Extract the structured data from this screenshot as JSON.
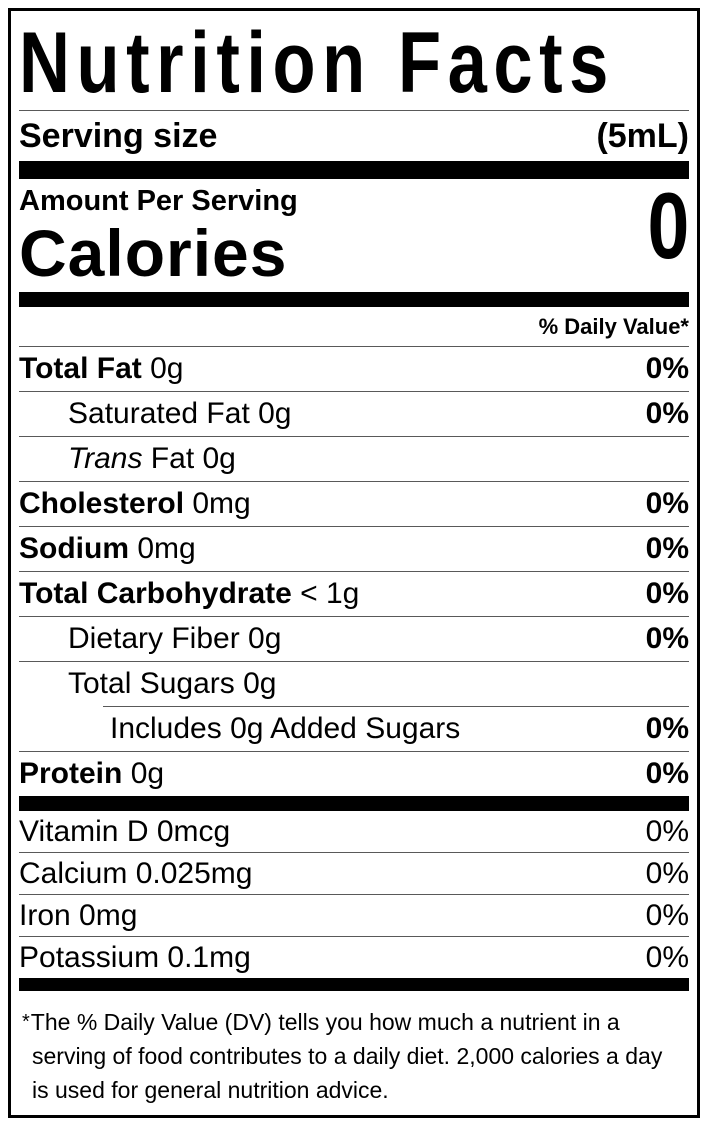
{
  "colors": {
    "text": "#000000",
    "background": "#ffffff",
    "bar": "#000000"
  },
  "title": "Nutrition Facts",
  "serving": {
    "label": "Serving size",
    "value": "(5mL)"
  },
  "amount_per_serving": "Amount Per Serving",
  "calories": {
    "label": "Calories",
    "value": "0"
  },
  "daily_value_header": "% Daily Value*",
  "nutrients": [
    {
      "name": "Total Fat",
      "amount": "0g",
      "pct": "0%",
      "bold": true,
      "indent": 0
    },
    {
      "name": "Saturated Fat",
      "amount": "0g",
      "pct": "0%",
      "bold": false,
      "indent": 1
    },
    {
      "name": "Trans",
      "italic": true,
      "amount": "Fat 0g",
      "pct": "",
      "bold": false,
      "indent": 1
    },
    {
      "name": "Cholesterol",
      "amount": "0mg",
      "pct": "0%",
      "bold": true,
      "indent": 0
    },
    {
      "name": "Sodium",
      "amount": "0mg",
      "pct": "0%",
      "bold": true,
      "indent": 0
    },
    {
      "name": "Total Carbohydrate",
      "amount": "< 1g",
      "pct": "0%",
      "bold": true,
      "indent": 0
    },
    {
      "name": "Dietary Fiber",
      "amount": "0g",
      "pct": "0%",
      "bold": false,
      "indent": 1
    },
    {
      "name": "Total Sugars",
      "amount": "0g",
      "pct": "",
      "bold": false,
      "indent": 1
    },
    {
      "name": "Includes 0g Added Sugars",
      "amount": "",
      "pct": "0%",
      "bold": false,
      "indent": 2,
      "divider_indent": true
    },
    {
      "name": "Protein",
      "amount": "0g",
      "pct": "0%",
      "bold": true,
      "indent": 0
    }
  ],
  "vitamins": [
    {
      "name": "Vitamin D 0mcg",
      "pct": "0%"
    },
    {
      "name": "Calcium 0.025mg",
      "pct": "0%"
    },
    {
      "name": "Iron 0mg",
      "pct": "0%"
    },
    {
      "name": "Potassium 0.1mg",
      "pct": "0%"
    }
  ],
  "footnote": {
    "asterisk": "*",
    "text": "The % Daily Value (DV) tells you how much a nutrient in a serving of food contributes to a daily diet. 2,000 calories a day is used for general nutrition advice."
  }
}
